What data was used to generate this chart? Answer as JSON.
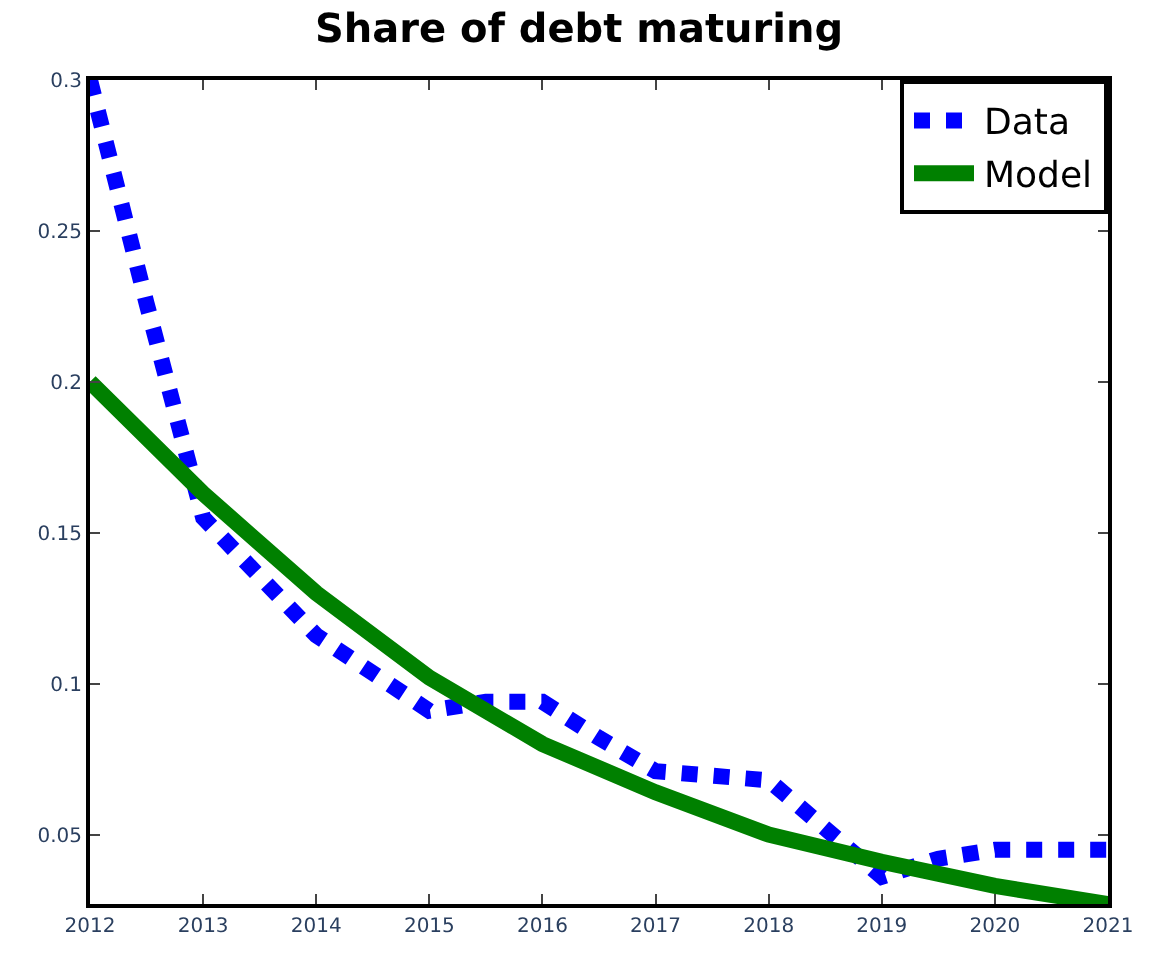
{
  "chart_data": {
    "type": "line",
    "title": "Share of debt maturing",
    "xlim": [
      2012,
      2021
    ],
    "xticks": [
      2012,
      2013,
      2014,
      2015,
      2016,
      2017,
      2018,
      2019,
      2020,
      2021
    ],
    "ylim": [
      0.027,
      0.3
    ],
    "yticks": [
      0.05,
      0.1,
      0.15,
      0.2,
      0.25,
      0.3
    ],
    "legend": "top right",
    "series": [
      {
        "name": "Data",
        "color": "#0000ff",
        "line_style": "dotted",
        "x": [
          2012,
          2012.5,
          2013,
          2014,
          2015,
          2015.5,
          2016,
          2016.5,
          2017,
          2018,
          2018.5,
          2019,
          2019.5,
          2020,
          2021
        ],
        "values": [
          0.3,
          0.226,
          0.155,
          0.116,
          0.091,
          0.094,
          0.094,
          0.082,
          0.071,
          0.068,
          0.052,
          0.036,
          0.042,
          0.045,
          0.045
        ]
      },
      {
        "name": "Model",
        "color": "#008000",
        "line_style": "solid",
        "x": [
          2012,
          2013,
          2014,
          2015,
          2016,
          2017,
          2018,
          2019,
          2020,
          2021
        ],
        "values": [
          0.2,
          0.163,
          0.13,
          0.102,
          0.08,
          0.064,
          0.05,
          0.041,
          0.033,
          0.027
        ]
      }
    ]
  }
}
